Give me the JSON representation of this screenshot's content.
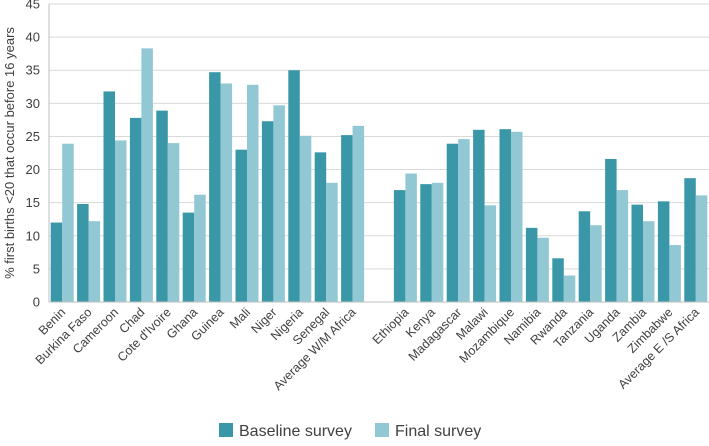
{
  "chart_data": {
    "type": "bar",
    "title": "",
    "xlabel": "",
    "ylabel": "% first births <20 that occur before 16 years",
    "ylim": [
      0,
      45
    ],
    "yticks": [
      0,
      5,
      10,
      15,
      20,
      25,
      30,
      35,
      40,
      45
    ],
    "grid": true,
    "legend": "bottom",
    "categories": [
      "Benin",
      "Burkina Faso",
      "Cameroon",
      "Chad",
      "Cote d'Ivoire",
      "Ghana",
      "Guinea",
      "Mali",
      "Niger",
      "Nigeria",
      "Senegal",
      "Average W/M Africa",
      "",
      "Ethiopia",
      "Kenya",
      "Madagascar",
      "Malawi",
      "Mozambique",
      "Namibia",
      "Rwanda",
      "Tanzania",
      "Uganda",
      "Zambia",
      "Zimbabwe",
      "Average E /S Africa"
    ],
    "series": [
      {
        "name": "Baseline survey",
        "color": "#3a97a8",
        "values": [
          12.0,
          14.8,
          31.8,
          27.8,
          28.9,
          13.5,
          34.7,
          23.0,
          27.3,
          35.0,
          22.6,
          25.2,
          null,
          16.9,
          17.8,
          23.9,
          26.0,
          26.1,
          11.2,
          6.6,
          13.7,
          21.6,
          14.7,
          15.2,
          18.7
        ]
      },
      {
        "name": "Final survey",
        "color": "#92c8d4",
        "values": [
          23.9,
          12.2,
          24.4,
          38.3,
          24.0,
          16.2,
          33.0,
          32.8,
          29.7,
          25.1,
          18.0,
          26.6,
          null,
          19.4,
          18.0,
          24.6,
          14.6,
          25.7,
          9.7,
          4.0,
          11.6,
          16.9,
          12.2,
          8.6,
          16.1
        ]
      }
    ]
  }
}
